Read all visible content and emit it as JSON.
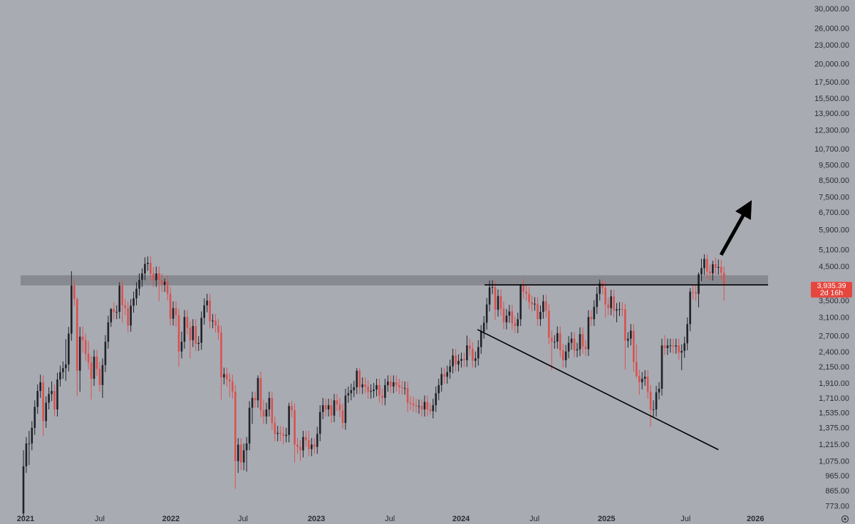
{
  "chart_data": {
    "type": "candlestick",
    "log_scale": true,
    "up_color": "#202228",
    "down_color": "#d9524f",
    "background": "#a9abb3",
    "ylim": [
      680,
      32150
    ],
    "xlim": [
      -8.3,
      276.7
    ],
    "yticks": [
      {
        "value": 30000,
        "label": "30,000.00"
      },
      {
        "value": 26000,
        "label": "26,000.00"
      },
      {
        "value": 23000,
        "label": "23,000.00"
      },
      {
        "value": 20000,
        "label": "20,000.00"
      },
      {
        "value": 17500,
        "label": "17,500.00"
      },
      {
        "value": 15500,
        "label": "15,500.00"
      },
      {
        "value": 13900,
        "label": "13,900.00"
      },
      {
        "value": 12300,
        "label": "12,300.00"
      },
      {
        "value": 10700,
        "label": "10,700.00"
      },
      {
        "value": 9500,
        "label": "9,500.00"
      },
      {
        "value": 8500,
        "label": "8,500.00"
      },
      {
        "value": 7500,
        "label": "7,500.00"
      },
      {
        "value": 6700,
        "label": "6,700.00"
      },
      {
        "value": 5900,
        "label": "5,900.00"
      },
      {
        "value": 5100,
        "label": "5,100.00"
      },
      {
        "value": 4500,
        "label": "4,500.00"
      },
      {
        "value": 3500,
        "label": "3,500.00"
      },
      {
        "value": 3100,
        "label": "3,100.00"
      },
      {
        "value": 2700,
        "label": "2,700.00"
      },
      {
        "value": 2400,
        "label": "2,400.00"
      },
      {
        "value": 2150,
        "label": "2,150.00"
      },
      {
        "value": 1910,
        "label": "1,910.00"
      },
      {
        "value": 1710,
        "label": "1,710.00"
      },
      {
        "value": 1535,
        "label": "1,535.00"
      },
      {
        "value": 1375,
        "label": "1,375.00"
      },
      {
        "value": 1215,
        "label": "1,215.00"
      },
      {
        "value": 1075,
        "label": "1,075.00"
      },
      {
        "value": 965,
        "label": "965.00"
      },
      {
        "value": 865,
        "label": "865.00"
      },
      {
        "value": 773,
        "label": "773.00"
      }
    ],
    "xticks": [
      {
        "value": 0.76,
        "label": "2021"
      },
      {
        "value": 27.0,
        "label": "Jul"
      },
      {
        "value": 52.2,
        "label": "2022"
      },
      {
        "value": 77.7,
        "label": "Jul"
      },
      {
        "value": 103.7,
        "label": "2023"
      },
      {
        "value": 129.7,
        "label": "Jul"
      },
      {
        "value": 154.9,
        "label": "2024"
      },
      {
        "value": 180.9,
        "label": "Jul"
      },
      {
        "value": 206.4,
        "label": "2025"
      },
      {
        "value": 234.4,
        "label": "Jul"
      },
      {
        "value": 259.1,
        "label": "2026"
      }
    ],
    "open": [
      735,
      1040,
      1230,
      1230,
      1380,
      1610,
      1810,
      1930,
      1450,
      1660,
      1770,
      1810,
      1580,
      1970,
      2080,
      2140,
      2200,
      2760,
      3930,
      3560,
      2100,
      2700,
      2630,
      2380,
      2230,
      1980,
      2330,
      2130,
      1890,
      2190,
      2600,
      3000,
      3310,
      3230,
      3240,
      3930,
      3400,
      3330,
      2930,
      3390,
      3580,
      3840,
      4100,
      4300,
      4610,
      4650,
      4290,
      4090,
      4300,
      4100,
      3950,
      4040,
      3700,
      3080,
      3330,
      3160,
      2420,
      2600,
      3120,
      2880,
      2630,
      2920,
      2560,
      2580,
      3100,
      3400,
      3520,
      3020,
      3040,
      2930,
      2780,
      2000,
      2050,
      1970,
      1940,
      1800,
      1080,
      1220,
      1070,
      1170,
      1230,
      1600,
      1720,
      1690,
      1990,
      1570,
      1500,
      1580,
      1720,
      1430,
      1320,
      1330,
      1320,
      1300,
      1310,
      1620,
      1570,
      1220,
      1200,
      1170,
      1290,
      1260,
      1180,
      1220,
      1200,
      1320,
      1550,
      1630,
      1580,
      1630,
      1510,
      1690,
      1640,
      1570,
      1430,
      1750,
      1780,
      1820,
      1860,
      2100,
      1860,
      1900,
      1870,
      1800,
      1810,
      1830,
      1890,
      1750,
      1720,
      1890,
      1940,
      1870,
      1930,
      1890,
      1860,
      1850,
      1850,
      1660,
      1650,
      1630,
      1620,
      1620,
      1580,
      1670,
      1580,
      1560,
      1630,
      1780,
      1890,
      2050,
      2010,
      2080,
      2170,
      2350,
      2200,
      2260,
      2290,
      2270,
      2530,
      2470,
      2260,
      2300,
      2500,
      2800,
      2990,
      3420,
      3880,
      3890,
      3290,
      3640,
      3320,
      3000,
      3150,
      3250,
      2980,
      2920,
      3070,
      3930,
      3760,
      3700,
      3480,
      3420,
      3440,
      3070,
      3240,
      3500,
      3270,
      2680,
      2600,
      2600,
      2770,
      2440,
      2270,
      2420,
      2580,
      2660,
      2440,
      2460,
      2750,
      2510,
      2460,
      3120,
      3070,
      3360,
      3700,
      4000,
      3870,
      3420,
      3330,
      3630,
      3270,
      3300,
      3310,
      3300,
      2620,
      2660,
      2820,
      2240,
      2020,
      1930,
      1980,
      2010,
      1800,
      1580,
      1580,
      1790,
      1840,
      2530,
      2480,
      2530,
      2530,
      2510,
      2530,
      2400,
      2430,
      2570,
      2960,
      3760,
      3740,
      3700,
      4270,
      4470,
      4780,
      4360,
      4300,
      4600,
      4480,
      4510,
      4320
    ],
    "high": [
      1170,
      1290,
      1350,
      1450,
      1690,
      1900,
      2040,
      2030,
      1740,
      1860,
      1940,
      1900,
      2070,
      2180,
      2250,
      2650,
      2900,
      4370,
      4130,
      3600,
      2900,
      2910,
      2760,
      2620,
      2340,
      2450,
      2450,
      2240,
      2300,
      2730,
      3150,
      3330,
      3470,
      3400,
      4030,
      4130,
      3570,
      3500,
      3560,
      3760,
      4030,
      4300,
      4460,
      4840,
      4870,
      4880,
      4500,
      4520,
      4520,
      4300,
      4140,
      4240,
      3890,
      3500,
      3500,
      3320,
      2800,
      3280,
      3280,
      3020,
      3070,
      3070,
      2710,
      3250,
      3580,
      3700,
      3700,
      3190,
      3190,
      3080,
      2920,
      2150,
      2150,
      2070,
      2040,
      1890,
      1280,
      1280,
      1230,
      1290,
      1680,
      1800,
      1800,
      2030,
      2090,
      1700,
      1660,
      1800,
      1800,
      1500,
      1400,
      1400,
      1390,
      1380,
      1660,
      1680,
      1650,
      1280,
      1260,
      1350,
      1350,
      1350,
      1280,
      1280,
      1390,
      1630,
      1720,
      1710,
      1710,
      1710,
      1770,
      1770,
      1720,
      1650,
      1840,
      1870,
      1910,
      1950,
      2140,
      2140,
      2000,
      2000,
      1960,
      1900,
      1920,
      1980,
      1980,
      1840,
      1980,
      2030,
      2030,
      2030,
      2030,
      1980,
      1950,
      1940,
      1940,
      1740,
      1740,
      1710,
      1700,
      1700,
      1750,
      1750,
      1660,
      1710,
      1870,
      1980,
      2150,
      2150,
      2180,
      2280,
      2470,
      2470,
      2370,
      2400,
      2400,
      2720,
      2660,
      2590,
      2420,
      2630,
      2940,
      3140,
      3590,
      4080,
      4090,
      4080,
      3820,
      3820,
      3490,
      3310,
      3410,
      3410,
      3130,
      3220,
      3980,
      4130,
      3950,
      3890,
      3650,
      3610,
      3610,
      3400,
      3670,
      3670,
      3430,
      2820,
      2730,
      2910,
      2910,
      2560,
      2540,
      2710,
      2790,
      2790,
      2580,
      2890,
      2890,
      2640,
      3280,
      3280,
      3530,
      3890,
      4110,
      4110,
      4060,
      3590,
      3810,
      3810,
      3460,
      3480,
      3480,
      3440,
      2790,
      2960,
      2960,
      2550,
      2120,
      2080,
      2110,
      2110,
      1890,
      1690,
      1880,
      1930,
      2660,
      2730,
      2660,
      2660,
      2660,
      2660,
      2660,
      2550,
      2700,
      3110,
      3860,
      3940,
      3930,
      4330,
      4790,
      4950,
      4950,
      4580,
      4720,
      4830,
      4760,
      4740,
      4530
    ],
    "low": [
      715,
      990,
      1050,
      1170,
      1310,
      1530,
      1720,
      1300,
      1380,
      1580,
      1680,
      1500,
      1500,
      1870,
      1980,
      1950,
      2090,
      2620,
      3380,
      1740,
      1800,
      2400,
      2260,
      2120,
      1700,
      1880,
      2020,
      1800,
      1720,
      2080,
      2470,
      2900,
      3070,
      3070,
      3080,
      3000,
      3160,
      2780,
      2800,
      3220,
      3400,
      3650,
      3890,
      4090,
      4380,
      4080,
      3890,
      3890,
      3500,
      3750,
      3750,
      3520,
      2930,
      2930,
      2900,
      2160,
      2300,
      2470,
      2740,
      2300,
      2500,
      2430,
      2430,
      2450,
      2950,
      3230,
      2870,
      2870,
      2780,
      2640,
      1700,
      1900,
      1870,
      1730,
      1710,
      880,
      990,
      1010,
      1010,
      1000,
      1170,
      1420,
      1600,
      1600,
      1490,
      1420,
      1420,
      1500,
      1360,
      1250,
      1250,
      1250,
      1220,
      1240,
      1240,
      1490,
      1070,
      1140,
      1080,
      1110,
      1200,
      1120,
      1120,
      1140,
      1140,
      1250,
      1470,
      1500,
      1500,
      1430,
      1440,
      1560,
      1490,
      1370,
      1360,
      1660,
      1690,
      1730,
      1770,
      1770,
      1770,
      1780,
      1710,
      1710,
      1720,
      1740,
      1660,
      1630,
      1630,
      1800,
      1780,
      1780,
      1800,
      1770,
      1760,
      1760,
      1550,
      1570,
      1550,
      1540,
      1530,
      1500,
      1500,
      1500,
      1520,
      1480,
      1550,
      1690,
      1800,
      1910,
      1910,
      1980,
      2060,
      2090,
      2090,
      2150,
      2160,
      2160,
      2350,
      2150,
      2150,
      2180,
      2380,
      2660,
      2840,
      3250,
      3690,
      3060,
      3130,
      3150,
      2850,
      2850,
      2990,
      2830,
      2770,
      2770,
      2920,
      3570,
      3520,
      3310,
      3250,
      3270,
      2920,
      2920,
      3080,
      3110,
      2550,
      2110,
      2470,
      2470,
      2320,
      2150,
      2150,
      2300,
      2450,
      2320,
      2320,
      2340,
      2380,
      2340,
      2340,
      2920,
      2920,
      3190,
      3520,
      3680,
      3100,
      3160,
      3160,
      3110,
      3000,
      3140,
      3130,
      2120,
      2490,
      2530,
      2080,
      1990,
      1760,
      1830,
      1880,
      1710,
      1390,
      1500,
      1500,
      1700,
      1750,
      2360,
      2360,
      2400,
      2380,
      2380,
      2280,
      2110,
      2310,
      2440,
      2810,
      3550,
      3510,
      3350,
      4060,
      4250,
      4140,
      4080,
      4080,
      4260,
      4260,
      4100,
      3520
    ],
    "close": [
      1040,
      1230,
      1230,
      1380,
      1610,
      1810,
      1930,
      1450,
      1660,
      1770,
      1810,
      1580,
      1970,
      2080,
      2140,
      2200,
      2760,
      3930,
      3560,
      2100,
      2700,
      2630,
      2380,
      2230,
      1980,
      2330,
      2130,
      1890,
      2190,
      2600,
      3000,
      3310,
      3230,
      3240,
      3930,
      3400,
      3330,
      2930,
      3390,
      3580,
      3840,
      4100,
      4300,
      4610,
      4650,
      4290,
      4090,
      4300,
      4100,
      3950,
      4040,
      3700,
      3080,
      3330,
      3160,
      2420,
      2600,
      3120,
      2880,
      2630,
      2920,
      2560,
      2580,
      3100,
      3400,
      3520,
      3020,
      3040,
      2930,
      2780,
      2000,
      2050,
      1970,
      1940,
      1800,
      1080,
      1220,
      1070,
      1170,
      1230,
      1600,
      1720,
      1690,
      1990,
      1570,
      1500,
      1580,
      1720,
      1430,
      1320,
      1330,
      1320,
      1300,
      1310,
      1620,
      1570,
      1220,
      1200,
      1170,
      1290,
      1260,
      1180,
      1220,
      1200,
      1320,
      1550,
      1630,
      1580,
      1630,
      1510,
      1690,
      1640,
      1570,
      1430,
      1750,
      1780,
      1820,
      1860,
      2100,
      1860,
      1900,
      1870,
      1800,
      1810,
      1830,
      1890,
      1750,
      1720,
      1890,
      1940,
      1870,
      1930,
      1890,
      1860,
      1850,
      1850,
      1660,
      1650,
      1630,
      1620,
      1620,
      1580,
      1670,
      1580,
      1560,
      1630,
      1780,
      1890,
      2050,
      2010,
      2080,
      2170,
      2350,
      2200,
      2260,
      2290,
      2270,
      2530,
      2470,
      2260,
      2300,
      2500,
      2800,
      2990,
      3420,
      3880,
      3890,
      3290,
      3640,
      3320,
      3000,
      3150,
      3250,
      2980,
      2920,
      3070,
      3930,
      3760,
      3700,
      3480,
      3420,
      3440,
      3070,
      3240,
      3500,
      3270,
      2680,
      2600,
      2600,
      2770,
      2440,
      2270,
      2420,
      2580,
      2660,
      2440,
      2460,
      2750,
      2510,
      2460,
      3120,
      3070,
      3360,
      3700,
      4000,
      3870,
      3420,
      3330,
      3630,
      3270,
      3300,
      3310,
      3300,
      2620,
      2660,
      2820,
      2240,
      2020,
      1930,
      1980,
      2010,
      1800,
      1580,
      1580,
      1790,
      1840,
      2530,
      2480,
      2530,
      2530,
      2510,
      2530,
      2400,
      2430,
      2570,
      2960,
      3760,
      3740,
      3700,
      4270,
      4470,
      4780,
      4360,
      4300,
      4600,
      4480,
      4510,
      4320,
      3935.39
    ],
    "last_price": {
      "value": 3935.39,
      "label": "3,935.39"
    },
    "countdown": "2d 16h",
    "resistance_zone": [
      3935,
      4240
    ],
    "resistance_line": {
      "x": [
        163.2,
        263.6
      ],
      "y": [
        3950,
        3950
      ]
    },
    "trend_line": {
      "x": [
        160.7,
        246
      ],
      "y": [
        2845,
        1175
      ]
    }
  }
}
